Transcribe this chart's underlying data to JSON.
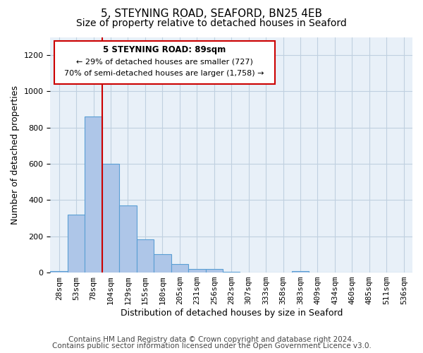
{
  "title_line1": "5, STEYNING ROAD, SEAFORD, BN25 4EB",
  "title_line2": "Size of property relative to detached houses in Seaford",
  "xlabel": "Distribution of detached houses by size in Seaford",
  "ylabel": "Number of detached properties",
  "bar_values": [
    10,
    320,
    860,
    600,
    370,
    185,
    103,
    47,
    20,
    20,
    5,
    0,
    0,
    0,
    10,
    0,
    0,
    0,
    0,
    0,
    0
  ],
  "bin_labels": [
    "28sqm",
    "53sqm",
    "78sqm",
    "104sqm",
    "129sqm",
    "155sqm",
    "180sqm",
    "205sqm",
    "231sqm",
    "256sqm",
    "282sqm",
    "307sqm",
    "333sqm",
    "358sqm",
    "383sqm",
    "409sqm",
    "434sqm",
    "460sqm",
    "485sqm",
    "511sqm",
    "536sqm"
  ],
  "bar_color": "#aec6e8",
  "bar_edge_color": "#5a9fd4",
  "ylim": [
    0,
    1300
  ],
  "yticks": [
    0,
    200,
    400,
    600,
    800,
    1000,
    1200
  ],
  "red_line_x": 3,
  "annotation_title": "5 STEYNING ROAD: 89sqm",
  "annotation_line1": "← 29% of detached houses are smaller (727)",
  "annotation_line2": "70% of semi-detached houses are larger (1,758) →",
  "annotation_border_color": "#cc0000",
  "footer_line1": "Contains HM Land Registry data © Crown copyright and database right 2024.",
  "footer_line2": "Contains public sector information licensed under the Open Government Licence v3.0.",
  "background_color": "#ffffff",
  "plot_bg_color": "#e8f0f8",
  "grid_color": "#c0d0e0",
  "title_fontsize": 11,
  "subtitle_fontsize": 10,
  "axis_label_fontsize": 9,
  "tick_fontsize": 8,
  "footer_fontsize": 7.5
}
